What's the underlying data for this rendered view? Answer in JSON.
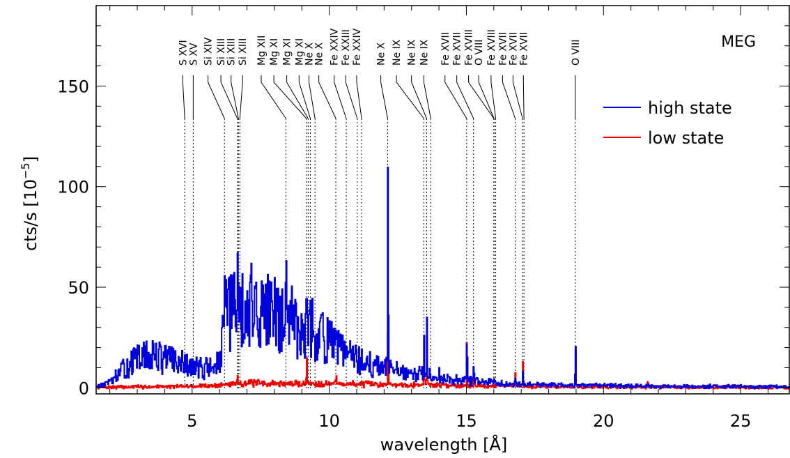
{
  "chart_data": {
    "type": "line",
    "panel_label": "MEG",
    "xlabel": "wavelength [Å]",
    "ylabel_main": "cts/s  [10",
    "ylabel_exp": "−5",
    "ylabel_close": "]",
    "xlim": [
      1.5,
      26.8
    ],
    "ylim": [
      -3,
      190
    ],
    "x_ticks": [
      5,
      10,
      15,
      20,
      25
    ],
    "x_tick_labels": [
      "5",
      "10",
      "15",
      "20",
      "25"
    ],
    "y_ticks": [
      0,
      50,
      100,
      150
    ],
    "y_tick_labels": [
      "0",
      "50",
      "100",
      "150"
    ],
    "legend_position": "top-right",
    "series": [
      {
        "name": "high state",
        "color": "#0000dd"
      },
      {
        "name": "low state",
        "color": "#ee0000"
      }
    ],
    "high_state_profile": [
      [
        1.6,
        1
      ],
      [
        2.0,
        3
      ],
      [
        2.4,
        8
      ],
      [
        2.8,
        13
      ],
      [
        3.2,
        15
      ],
      [
        3.6,
        16
      ],
      [
        4.0,
        15
      ],
      [
        4.4,
        13
      ],
      [
        4.8,
        11
      ],
      [
        5.2,
        10
      ],
      [
        5.6,
        10
      ],
      [
        6.0,
        12
      ],
      [
        6.2,
        35
      ],
      [
        6.5,
        39
      ],
      [
        7.0,
        41
      ],
      [
        7.5,
        38
      ],
      [
        8.0,
        36
      ],
      [
        8.5,
        35
      ],
      [
        9.0,
        32
      ],
      [
        9.5,
        28
      ],
      [
        10.0,
        22
      ],
      [
        10.5,
        18
      ],
      [
        11.0,
        14
      ],
      [
        11.5,
        11
      ],
      [
        12.0,
        10
      ],
      [
        12.5,
        8
      ],
      [
        13.0,
        6
      ],
      [
        13.5,
        7
      ],
      [
        14.0,
        5
      ],
      [
        14.5,
        4
      ],
      [
        15.0,
        4
      ],
      [
        15.5,
        3
      ],
      [
        16.0,
        2.5
      ],
      [
        17.0,
        2
      ],
      [
        18.0,
        1.5
      ],
      [
        19.0,
        1.2
      ],
      [
        20.0,
        1
      ],
      [
        22.0,
        0.8
      ],
      [
        26.8,
        0.5
      ]
    ],
    "high_state_lines": [
      [
        6.18,
        60
      ],
      [
        6.65,
        67
      ],
      [
        8.42,
        68
      ],
      [
        9.17,
        31
      ],
      [
        10.24,
        17
      ],
      [
        12.13,
        118
      ],
      [
        13.45,
        26
      ],
      [
        13.55,
        35
      ],
      [
        14.0,
        10
      ],
      [
        15.01,
        29
      ],
      [
        15.26,
        14
      ],
      [
        16.01,
        6
      ],
      [
        16.78,
        5
      ],
      [
        17.05,
        8
      ],
      [
        18.97,
        22
      ]
    ],
    "low_state_profile": [
      [
        1.6,
        0.2
      ],
      [
        3.0,
        0.5
      ],
      [
        5.0,
        0.8
      ],
      [
        6.0,
        1.2
      ],
      [
        6.6,
        2.5
      ],
      [
        7.5,
        2.2
      ],
      [
        8.5,
        2.0
      ],
      [
        9.5,
        2.2
      ],
      [
        10.5,
        2.0
      ],
      [
        11.5,
        1.8
      ],
      [
        12.5,
        1.6
      ],
      [
        13.5,
        1.5
      ],
      [
        14.5,
        1.2
      ],
      [
        15.5,
        1.0
      ],
      [
        17.0,
        0.8
      ],
      [
        19.0,
        0.5
      ],
      [
        22.0,
        0.4
      ],
      [
        26.8,
        0.2
      ]
    ],
    "low_state_lines": [
      [
        6.65,
        6
      ],
      [
        9.17,
        16
      ],
      [
        10.24,
        8
      ],
      [
        12.13,
        29
      ],
      [
        13.45,
        26
      ],
      [
        13.55,
        23
      ],
      [
        15.01,
        30
      ],
      [
        15.26,
        6
      ],
      [
        16.78,
        8
      ],
      [
        17.05,
        13
      ],
      [
        18.97,
        20
      ],
      [
        21.6,
        3
      ]
    ],
    "line_ids": [
      {
        "label": "S XVI",
        "wavelength": 4.73,
        "label_x": 4.66
      },
      {
        "label": "S XV",
        "wavelength": 5.04,
        "label_x": 5.04
      },
      {
        "label": "Si XIV",
        "wavelength": 6.18,
        "label_x": 5.58
      },
      {
        "label": "Si XIII",
        "wavelength": 6.65,
        "label_x": 6.05
      },
      {
        "label": "Si XIII",
        "wavelength": 6.69,
        "label_x": 6.42
      },
      {
        "label": "Si XIII",
        "wavelength": 6.74,
        "label_x": 6.84
      },
      {
        "label": "Mg XII",
        "wavelength": 8.42,
        "label_x": 7.52
      },
      {
        "label": "Mg XI",
        "wavelength": 9.17,
        "label_x": 7.98
      },
      {
        "label": "Mg XI",
        "wavelength": 9.23,
        "label_x": 8.45
      },
      {
        "label": "Mg XI",
        "wavelength": 9.31,
        "label_x": 8.9
      },
      {
        "label": "Ne X",
        "wavelength": 9.48,
        "label_x": 9.26
      },
      {
        "label": "Ne X",
        "wavelength": 10.24,
        "label_x": 9.62
      },
      {
        "label": "Fe XXIV",
        "wavelength": 10.62,
        "label_x": 10.18
      },
      {
        "label": "Fe XXIII",
        "wavelength": 11.02,
        "label_x": 10.6
      },
      {
        "label": "Fe XXIV",
        "wavelength": 11.18,
        "label_x": 11.0
      },
      {
        "label": "Ne X",
        "wavelength": 12.13,
        "label_x": 11.88
      },
      {
        "label": "Ne IX",
        "wavelength": 13.45,
        "label_x": 12.45
      },
      {
        "label": "Ne IX",
        "wavelength": 13.55,
        "label_x": 13.0
      },
      {
        "label": "Ne IX",
        "wavelength": 13.7,
        "label_x": 13.45
      },
      {
        "label": "Fe XVII",
        "wavelength": 15.01,
        "label_x": 14.22
      },
      {
        "label": "Fe XVII",
        "wavelength": 15.26,
        "label_x": 14.65
      },
      {
        "label": "Fe XVIII",
        "wavelength": 16.0,
        "label_x": 15.08
      },
      {
        "label": "O VIII",
        "wavelength": 16.01,
        "label_x": 15.45
      },
      {
        "label": "Fe XVIII",
        "wavelength": 16.07,
        "label_x": 15.9
      },
      {
        "label": "Fe XVII",
        "wavelength": 16.78,
        "label_x": 16.32
      },
      {
        "label": "Fe XVII",
        "wavelength": 17.05,
        "label_x": 16.7
      },
      {
        "label": "Fe XVII",
        "wavelength": 17.1,
        "label_x": 17.08
      },
      {
        "label": "O VIII",
        "wavelength": 18.97,
        "label_x": 18.97
      }
    ]
  }
}
